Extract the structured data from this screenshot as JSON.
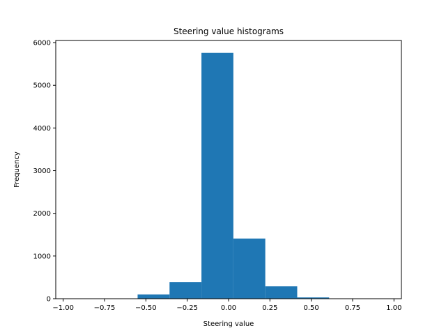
{
  "chart_data": {
    "type": "bar",
    "title": "Steering value histograms",
    "xlabel": "Steering value",
    "ylabel": "Frequency",
    "xlim": [
      -1.045,
      1.045
    ],
    "ylim": [
      0,
      6050
    ],
    "x_ticks": [
      -1.0,
      -0.75,
      -0.5,
      -0.25,
      0.0,
      0.25,
      0.5,
      0.75,
      1.0
    ],
    "x_tick_labels": [
      "−1.00",
      "−0.75",
      "−0.50",
      "−0.25",
      "0.00",
      "0.25",
      "0.50",
      "0.75",
      "1.00"
    ],
    "y_ticks": [
      0,
      1000,
      2000,
      3000,
      4000,
      5000,
      6000
    ],
    "y_tick_labels": [
      "0",
      "1000",
      "2000",
      "3000",
      "4000",
      "5000",
      "6000"
    ],
    "bins": [
      {
        "start": -1.0,
        "end": -0.8,
        "value": 0
      },
      {
        "start": -0.8,
        "end": -0.6,
        "value": 0
      },
      {
        "start": -0.55,
        "end": -0.357,
        "value": 100
      },
      {
        "start": -0.357,
        "end": -0.164,
        "value": 390
      },
      {
        "start": -0.164,
        "end": 0.029,
        "value": 5760
      },
      {
        "start": 0.029,
        "end": 0.222,
        "value": 1410
      },
      {
        "start": 0.222,
        "end": 0.415,
        "value": 290
      },
      {
        "start": 0.415,
        "end": 0.608,
        "value": 30
      },
      {
        "start": 0.608,
        "end": 0.8,
        "value": 0
      },
      {
        "start": 0.8,
        "end": 1.0,
        "value": 0
      }
    ],
    "bar_color": "#1f77b4",
    "grid": false,
    "legend": false
  }
}
